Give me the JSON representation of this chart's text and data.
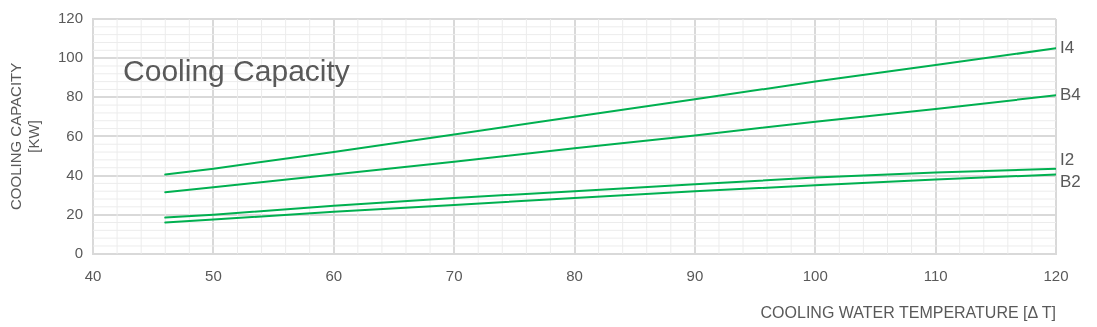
{
  "chart_data": {
    "type": "line",
    "title": "Cooling Capacity",
    "xlabel": "COOLING WATER TEMPERATURE [Δ T]",
    "ylabel": "COOLING CAPACITY\n[KW]",
    "x": [
      46,
      50,
      60,
      70,
      80,
      90,
      100,
      110,
      120
    ],
    "series": [
      {
        "name": "I4",
        "color": "#00b050",
        "values": [
          40.5,
          43.5,
          52,
          61,
          70,
          79,
          88,
          96.5,
          105
        ]
      },
      {
        "name": "B4",
        "color": "#00b050",
        "values": [
          31.5,
          34,
          40.5,
          47,
          54,
          60.5,
          67.5,
          74,
          81
        ]
      },
      {
        "name": "I2",
        "color": "#00b050",
        "values": [
          18.5,
          20,
          24.5,
          28.5,
          32,
          35.5,
          39,
          41.5,
          43.5
        ]
      },
      {
        "name": "B2",
        "color": "#00b050",
        "values": [
          16,
          17.5,
          21.5,
          25,
          28.5,
          32,
          35,
          38,
          40.5
        ]
      }
    ],
    "xlim": [
      40,
      120
    ],
    "xticks": [
      40,
      50,
      60,
      70,
      80,
      90,
      100,
      110,
      120
    ],
    "ylim": [
      0,
      120
    ],
    "yticks": [
      0,
      20,
      40,
      60,
      80,
      100,
      120
    ],
    "grid": true,
    "legend": false,
    "marker": "none",
    "line_style": "solid"
  }
}
